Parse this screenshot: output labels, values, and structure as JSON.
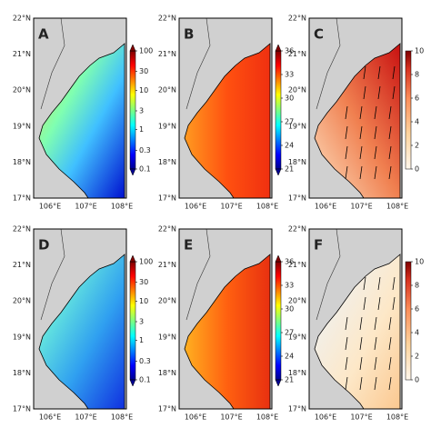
{
  "lat_labels": [
    "22°N",
    "21°N",
    "20°N",
    "19°N",
    "18°N",
    "17°N"
  ],
  "lon_labels": [
    "106°E",
    "107°E",
    "108°E"
  ],
  "panels": [
    {
      "label": "A",
      "colorbar_scale": "log",
      "colorbar_ticks": [
        100,
        30,
        10,
        3,
        1,
        0.3,
        0.1
      ]
    },
    {
      "label": "B",
      "colorbar_scale": "linear",
      "colorbar_ticks": [
        36,
        33,
        30,
        27,
        24,
        21
      ]
    },
    {
      "label": "C",
      "colorbar_scale": "linear",
      "colorbar_ticks": [
        10,
        8,
        6,
        4,
        2,
        0
      ]
    },
    {
      "label": "D",
      "colorbar_scale": "log",
      "colorbar_ticks": [
        100,
        30,
        10,
        3,
        1,
        0.3,
        0.1
      ]
    },
    {
      "label": "E",
      "colorbar_scale": "linear",
      "colorbar_ticks": [
        36,
        33,
        30,
        27,
        24,
        21
      ]
    },
    {
      "label": "F",
      "colorbar_scale": "linear",
      "colorbar_ticks": [
        10,
        8,
        6,
        4,
        2,
        0
      ]
    }
  ]
}
